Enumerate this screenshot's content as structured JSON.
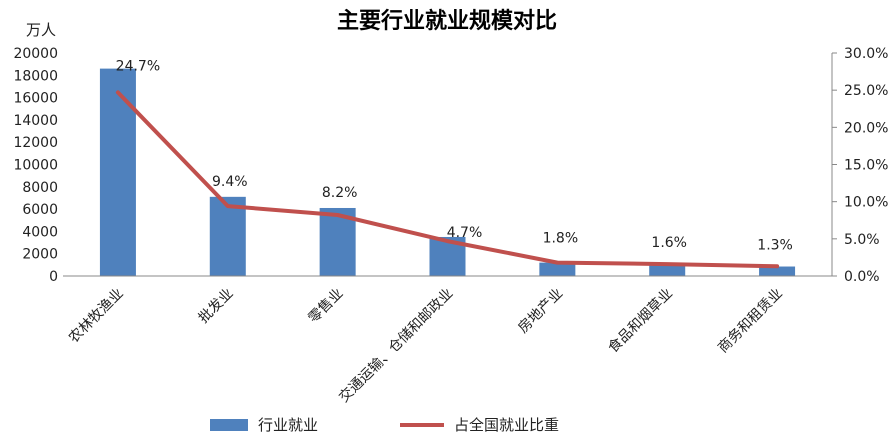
{
  "chart_data": {
    "type": "bar+line",
    "title": "主要行业就业规模对比",
    "ylabel_left": "万人",
    "categories": [
      "农林牧渔业",
      "批发业",
      "零售业",
      "交通运输、仓储和邮政业",
      "房地产业",
      "食品和烟草业",
      "商务和租赁业"
    ],
    "series": [
      {
        "name": "行业就业",
        "type": "bar",
        "axis": "left",
        "color": "#4f81bd",
        "values": [
          18600,
          7100,
          6100,
          3500,
          1200,
          1000,
          850
        ]
      },
      {
        "name": "占全国就业比重",
        "type": "line",
        "axis": "right",
        "color": "#c0504d",
        "values": [
          24.7,
          9.4,
          8.2,
          4.7,
          1.8,
          1.6,
          1.3
        ],
        "labels": [
          "24.7%",
          "9.4%",
          "8.2%",
          "4.7%",
          "1.8%",
          "1.6%",
          "1.3%"
        ]
      }
    ],
    "ylim_left": [
      0,
      20000
    ],
    "yticks_left": [
      0,
      2000,
      4000,
      6000,
      8000,
      10000,
      12000,
      14000,
      16000,
      18000,
      20000
    ],
    "ylim_right": [
      0,
      30
    ],
    "yticks_right": [
      "0.0%",
      "5.0%",
      "10.0%",
      "15.0%",
      "20.0%",
      "25.0%",
      "30.0%"
    ],
    "grid": false,
    "legend_position": "bottom"
  }
}
